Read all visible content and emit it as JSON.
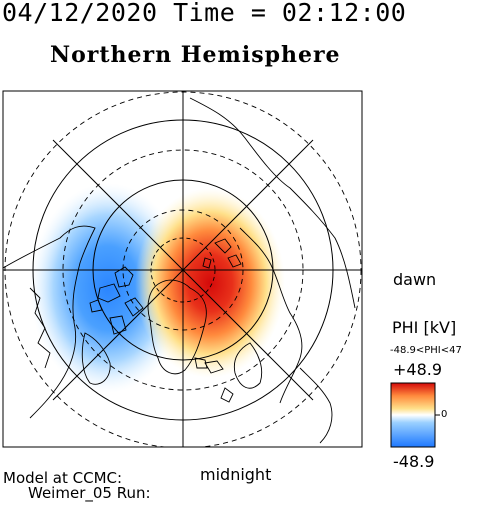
{
  "header": {
    "datetime": "04/12/2020 Time = 02:12:00",
    "hemisphere": "Northern Hemisphere"
  },
  "labels": {
    "dawn": "dawn",
    "midnight": "midnight"
  },
  "colorbar": {
    "title": "PHI [kV]",
    "range_text": "-48.9<PHI<47",
    "max_label": "+48.9",
    "mid_label": "0",
    "min_label": "-48.9",
    "colors": [
      "#1e78ff",
      "#9ad0ff",
      "#ffffff",
      "#ffe08a",
      "#ff8a3d",
      "#e01010"
    ]
  },
  "footer": {
    "line1": "Model at CCMC:",
    "line2": "Weimer_05 Run:"
  }
}
